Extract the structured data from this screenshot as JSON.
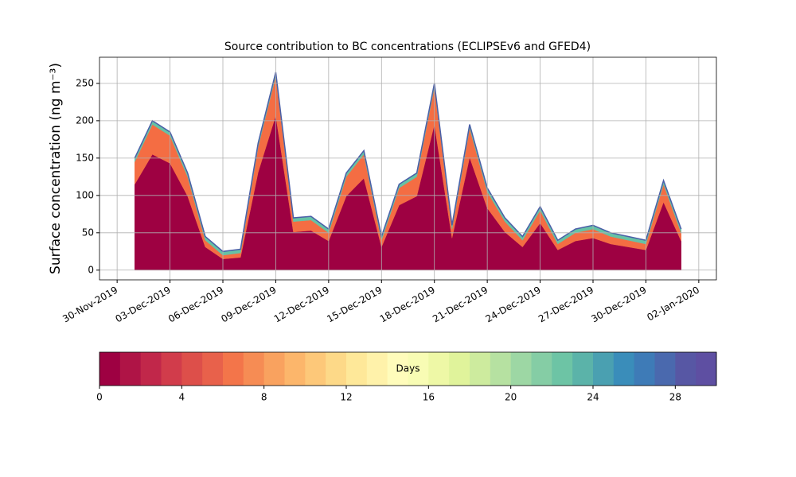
{
  "chart_data": {
    "type": "stacked_area",
    "title": "Source contribution to BC concentrations (ECLIPSEv6 and GFED4)",
    "y_label": "Surface concentration (ng m⁻³)",
    "x": [
      "2019-12-01",
      "2019-12-02",
      "2019-12-03",
      "2019-12-04",
      "2019-12-05",
      "2019-12-06",
      "2019-12-07",
      "2019-12-08",
      "2019-12-09",
      "2019-12-10",
      "2019-12-11",
      "2019-12-12",
      "2019-12-13",
      "2019-12-14",
      "2019-12-15",
      "2019-12-16",
      "2019-12-17",
      "2019-12-18",
      "2019-12-19",
      "2019-12-20",
      "2019-12-21",
      "2019-12-22",
      "2019-12-23",
      "2019-12-24",
      "2019-12-25",
      "2019-12-26",
      "2019-12-27",
      "2019-12-28",
      "2019-12-29",
      "2019-12-30",
      "2019-12-31",
      "2020-01-01"
    ],
    "series": [
      {
        "color": "#9e0142",
        "values": [
          115,
          155,
          143,
          99,
          31,
          15,
          17,
          131,
          207,
          51,
          53,
          39,
          99,
          123,
          31,
          87,
          99,
          195,
          43,
          151,
          83,
          51,
          31,
          63,
          27,
          39,
          43,
          35,
          31,
          27,
          91,
          39
        ]
      },
      {
        "color": "#f46d43",
        "values": [
          30,
          40,
          37,
          26,
          9,
          5,
          6,
          34,
          53,
          14,
          14,
          11,
          26,
          32,
          9,
          23,
          26,
          50,
          12,
          39,
          22,
          14,
          9,
          17,
          8,
          11,
          12,
          10,
          9,
          8,
          24,
          11
        ]
      },
      {
        "color": "#66c2a5",
        "values": [
          5,
          5,
          5,
          5,
          5,
          5,
          5,
          5,
          5,
          5,
          5,
          5,
          5,
          5,
          5,
          5,
          5,
          5,
          5,
          5,
          5,
          5,
          5,
          5,
          5,
          5,
          5,
          5,
          5,
          5,
          5,
          5
        ]
      }
    ],
    "outline_color": "#4a5ea8",
    "xlim": [
      "2019-11-29",
      "2020-01-03"
    ],
    "xticks": [
      {
        "value": "2019-11-30",
        "label": "30-Nov-2019"
      },
      {
        "value": "2019-12-03",
        "label": "03-Dec-2019"
      },
      {
        "value": "2019-12-06",
        "label": "06-Dec-2019"
      },
      {
        "value": "2019-12-09",
        "label": "09-Dec-2019"
      },
      {
        "value": "2019-12-12",
        "label": "12-Dec-2019"
      },
      {
        "value": "2019-12-15",
        "label": "15-Dec-2019"
      },
      {
        "value": "2019-12-18",
        "label": "18-Dec-2019"
      },
      {
        "value": "2019-12-21",
        "label": "21-Dec-2019"
      },
      {
        "value": "2019-12-24",
        "label": "24-Dec-2019"
      },
      {
        "value": "2019-12-27",
        "label": "27-Dec-2019"
      },
      {
        "value": "2019-12-30",
        "label": "30-Dec-2019"
      },
      {
        "value": "2020-01-02",
        "label": "02-Jan-2020"
      }
    ],
    "ylim": [
      -13,
      285
    ],
    "yticks": [
      0,
      50,
      100,
      150,
      200,
      250
    ],
    "grid": true,
    "colorbar": {
      "label": "Days",
      "lim": [
        0,
        30
      ],
      "ticks": [
        0,
        4,
        8,
        12,
        16,
        20,
        24,
        28
      ],
      "colors": [
        "#9e0142",
        "#af1446",
        "#c1274a",
        "#d13c4b",
        "#dd4f4a",
        "#e8614b",
        "#f3754a",
        "#f68c54",
        "#f9a25f",
        "#fcb66b",
        "#fdc879",
        "#fdd988",
        "#fee899",
        "#fff2aa",
        "#fffcbb",
        "#f8fcb4",
        "#eef8a6",
        "#e0f39b",
        "#cdeb9e",
        "#b6e1a1",
        "#9dd7a4",
        "#85cda5",
        "#6dc4a5",
        "#5bb3a9",
        "#4aa0b1",
        "#3a8dba",
        "#3e7bb7",
        "#4a69ae",
        "#5757a4",
        "#5e4fa2"
      ]
    }
  }
}
